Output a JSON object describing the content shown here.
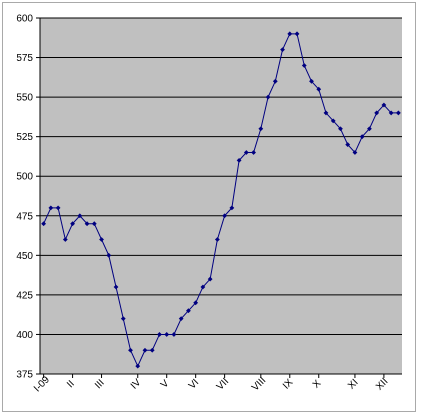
{
  "chart_data": {
    "type": "line",
    "title": "",
    "xlabel": "",
    "ylabel": "",
    "ylim": [
      375,
      600
    ],
    "yticks": [
      375,
      400,
      425,
      450,
      475,
      500,
      525,
      550,
      575,
      600
    ],
    "x_tick_labels": [
      {
        "label": "I-09",
        "index": 0
      },
      {
        "label": "II",
        "index": 4
      },
      {
        "label": "III",
        "index": 8
      },
      {
        "label": "IV",
        "index": 13
      },
      {
        "label": "V",
        "index": 17
      },
      {
        "label": "VI",
        "index": 21
      },
      {
        "label": "VII",
        "index": 25
      },
      {
        "label": "VIII",
        "index": 30
      },
      {
        "label": "IX",
        "index": 34
      },
      {
        "label": "X",
        "index": 38
      },
      {
        "label": "XI",
        "index": 43
      },
      {
        "label": "XII",
        "index": 47
      }
    ],
    "grid": "horizontal",
    "legend": "none",
    "colors": {
      "plot_bg": "#c0c0c0",
      "line": "#000080",
      "grid": "#000000"
    },
    "series": [
      {
        "values": [
          470,
          480,
          480,
          460,
          470,
          475,
          470,
          470,
          460,
          450,
          430,
          410,
          390,
          380,
          390,
          390,
          400,
          400,
          400,
          410,
          415,
          420,
          430,
          435,
          460,
          475,
          480,
          510,
          515,
          515,
          530,
          550,
          560,
          580,
          590,
          590,
          570,
          560,
          555,
          540,
          535,
          530,
          520,
          515,
          525,
          530,
          540,
          545,
          540,
          540
        ]
      }
    ]
  }
}
